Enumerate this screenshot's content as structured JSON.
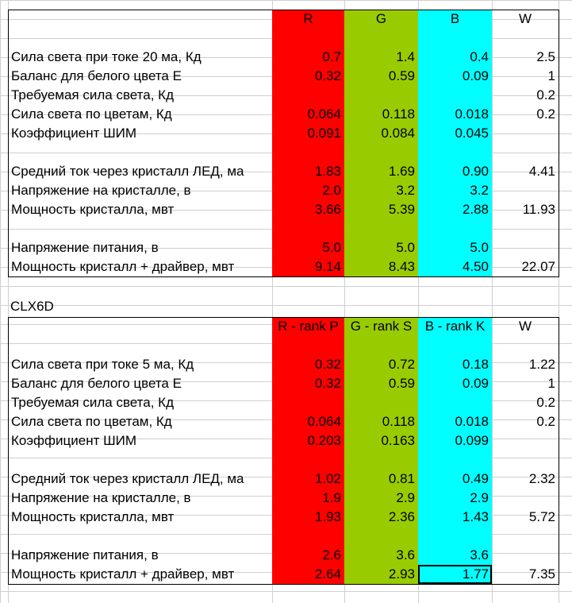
{
  "colors": {
    "red": "#ff0000",
    "green": "#99cc00",
    "cyan": "#00ffff"
  },
  "table1": {
    "title": "",
    "headers": {
      "r": "R",
      "g": "G",
      "b": "B",
      "w": "W"
    },
    "rows": [
      {
        "label": "",
        "r": "",
        "g": "",
        "b": "",
        "w": ""
      },
      {
        "label": "Сила света при токе 20 ма, Кд",
        "r": "0.7",
        "g": "1.4",
        "b": "0.4",
        "w": "2.5"
      },
      {
        "label": "Баланс для белого цвета Е",
        "r": "0.32",
        "g": "0.59",
        "b": "0.09",
        "w": "1"
      },
      {
        "label": "Требуемая сила света, Кд",
        "r": "",
        "g": "",
        "b": "",
        "w": "0.2"
      },
      {
        "label": "Сила света по цветам, Кд",
        "r": "0.064",
        "g": "0.118",
        "b": "0.018",
        "w": "0.2"
      },
      {
        "label": "Коэффициент ШИМ",
        "r": "0.091",
        "g": "0.084",
        "b": "0.045",
        "w": ""
      },
      {
        "label": "",
        "r": "",
        "g": "",
        "b": "",
        "w": ""
      },
      {
        "label": "Средний ток через кристалл ЛЕД, ма",
        "r": "1.83",
        "g": "1.69",
        "b": "0.90",
        "w": "4.41"
      },
      {
        "label": "Напряжение на кристалле, в",
        "r": "2.0",
        "g": "3.2",
        "b": "3.2",
        "w": ""
      },
      {
        "label": "Мощность кристалла, мвт",
        "r": "3.66",
        "g": "5.39",
        "b": "2.88",
        "w": "11.93"
      },
      {
        "label": "",
        "r": "",
        "g": "",
        "b": "",
        "w": ""
      },
      {
        "label": "Напряжение питания, в",
        "r": "5.0",
        "g": "5.0",
        "b": "5.0",
        "w": ""
      },
      {
        "label": "Мощность кристалл + драйвер, мвт",
        "r": "9.14",
        "g": "8.43",
        "b": "4.50",
        "w": "22.07"
      }
    ]
  },
  "table2": {
    "title": "CLX6D",
    "headers": {
      "r": "R - rank P",
      "g": "G - rank S",
      "b": "B - rank K",
      "w": "W"
    },
    "rows": [
      {
        "label": "",
        "r": "",
        "g": "",
        "b": "",
        "w": ""
      },
      {
        "label": "Сила света при токе 5 ма, Кд",
        "r": "0.32",
        "g": "0.72",
        "b": "0.18",
        "w": "1.22"
      },
      {
        "label": "Баланс для белого цвета Е",
        "r": "0.32",
        "g": "0.59",
        "b": "0.09",
        "w": "1"
      },
      {
        "label": "Требуемая сила света, Кд",
        "r": "",
        "g": "",
        "b": "",
        "w": "0.2"
      },
      {
        "label": "Сила света по цветам, Кд",
        "r": "0.064",
        "g": "0.118",
        "b": "0.018",
        "w": "0.2"
      },
      {
        "label": "Коэффициент ШИМ",
        "r": "0.203",
        "g": "0.163",
        "b": "0.099",
        "w": ""
      },
      {
        "label": "",
        "r": "",
        "g": "",
        "b": "",
        "w": ""
      },
      {
        "label": "Средний ток через кристалл ЛЕД, ма",
        "r": "1.02",
        "g": "0.81",
        "b": "0.49",
        "w": "2.32"
      },
      {
        "label": "Напряжение на кристалле, в",
        "r": "1.9",
        "g": "2.9",
        "b": "2.9",
        "w": ""
      },
      {
        "label": "Мощность кристалла, мвт",
        "r": "1.93",
        "g": "2.36",
        "b": "1.43",
        "w": "5.72"
      },
      {
        "label": "",
        "r": "",
        "g": "",
        "b": "",
        "w": ""
      },
      {
        "label": "Напряжение питания, в",
        "r": "2.6",
        "g": "3.6",
        "b": "3.6",
        "w": ""
      },
      {
        "label": "Мощность кристалл + драйвер, мвт",
        "r": "2.64",
        "g": "2.93",
        "b": "1.77",
        "w": "7.35"
      }
    ]
  }
}
